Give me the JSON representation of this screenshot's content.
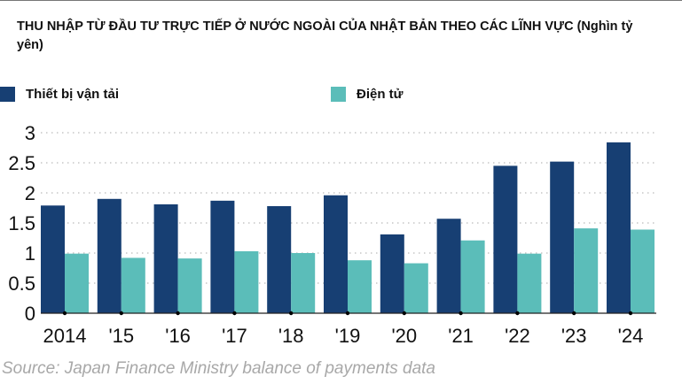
{
  "chart_data": {
    "type": "bar",
    "title": "THU NHẬP TỪ ĐẦU TƯ TRỰC TIẾP Ở NƯỚC NGOÀI CỦA NHẬT BẢN THEO CÁC LĨNH VỰC (Nghìn tỷ yên)",
    "categories": [
      "2014",
      "'15",
      "'16",
      "'17",
      "'18",
      "'19",
      "'20",
      "'21",
      "'22",
      "'23",
      "'24"
    ],
    "series": [
      {
        "name": "Thiết bị vận tải",
        "color": "#173f73",
        "values": [
          1.79,
          1.9,
          1.81,
          1.87,
          1.78,
          1.96,
          1.31,
          1.57,
          2.45,
          2.52,
          2.84
        ]
      },
      {
        "name": "Điện tử",
        "color": "#5bbdb9",
        "values": [
          0.99,
          0.92,
          0.91,
          1.03,
          1.0,
          0.88,
          0.83,
          1.21,
          0.99,
          1.41,
          1.39
        ]
      }
    ],
    "yticks": [
      "0",
      "0.5",
      "1",
      "1.5",
      "2",
      "2.5",
      "3"
    ],
    "ylim": [
      0,
      3
    ],
    "grid": true,
    "legend_position": "top",
    "source": "Source: Japan Finance Ministry balance of payments data"
  }
}
